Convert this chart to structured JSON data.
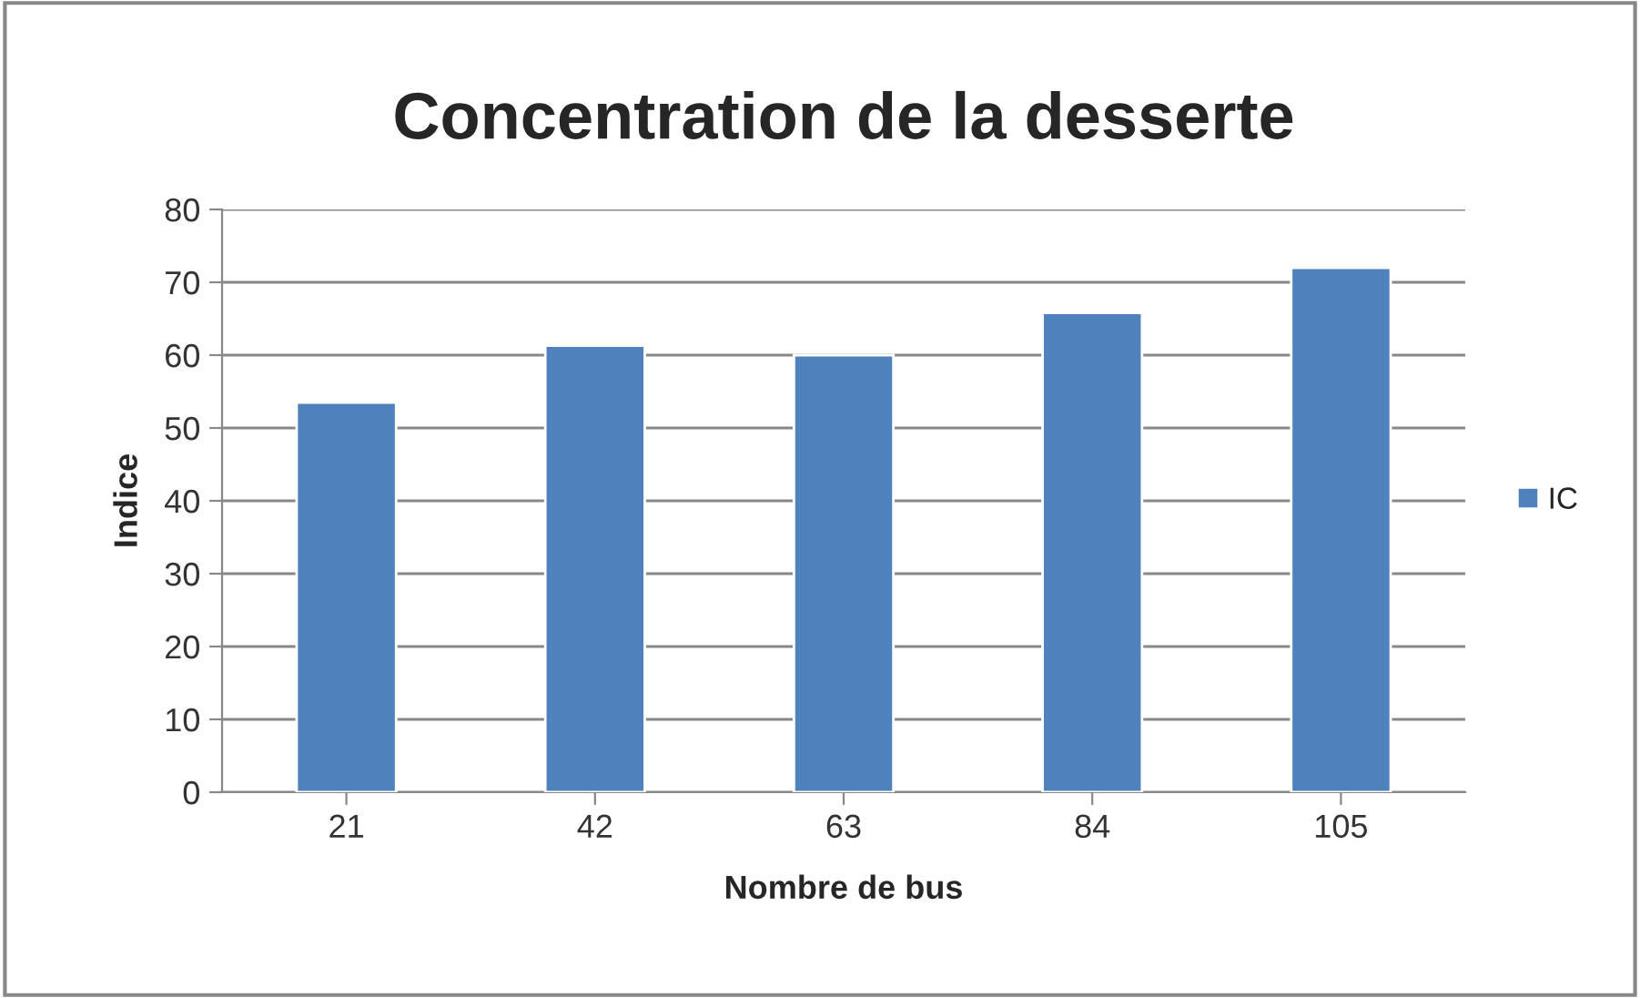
{
  "chart_data": {
    "type": "bar",
    "title": "Concentration de la desserte",
    "xlabel": "Nombre de bus",
    "ylabel": "Indice",
    "categories": [
      "21",
      "42",
      "63",
      "84",
      "105"
    ],
    "series": [
      {
        "name": "IC",
        "color": "#4f81bd",
        "values": [
          53.5,
          61.3,
          60,
          65.8,
          72
        ]
      }
    ],
    "ylim": [
      0,
      80
    ],
    "yticks": [
      0,
      10,
      20,
      30,
      40,
      50,
      60,
      70,
      80
    ],
    "grid": "y",
    "legend": "right"
  }
}
